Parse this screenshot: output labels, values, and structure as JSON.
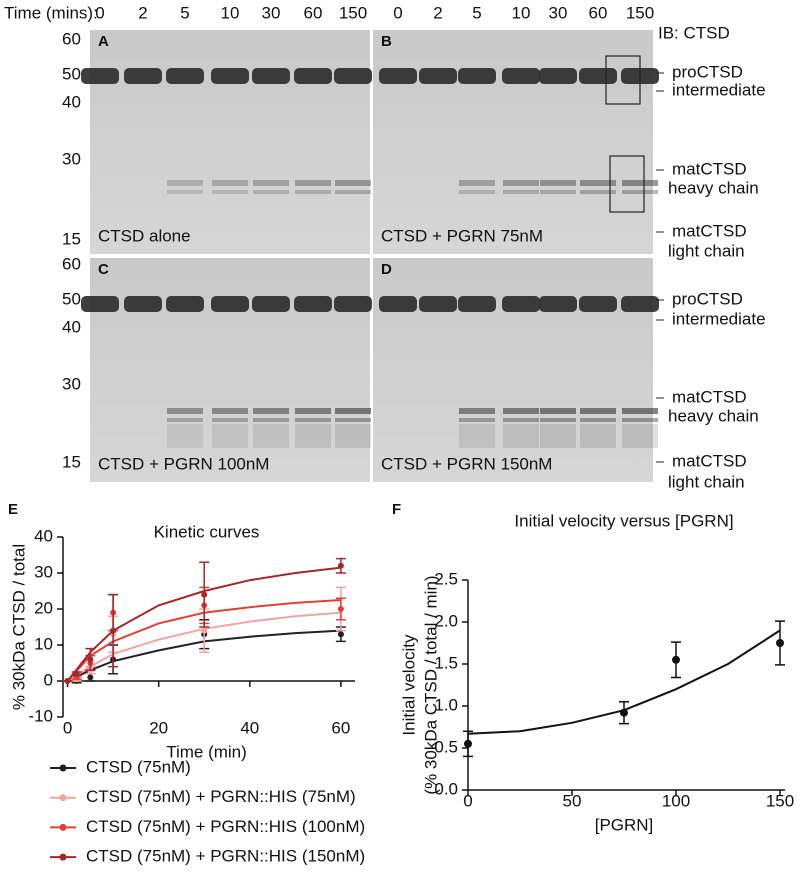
{
  "figure": {
    "time_label": "Time (mins):",
    "times": [
      "0",
      "2",
      "5",
      "10",
      "30",
      "60",
      "150"
    ],
    "ib_label": "IB: CTSD",
    "markers": [
      "60",
      "50",
      "40",
      "30",
      "15"
    ],
    "band_labels": [
      "proCTSD",
      "intermediate",
      "matCTSD",
      "heavy chain",
      "matCTSD",
      "light chain"
    ],
    "panels": [
      {
        "letter": "A",
        "caption": "CTSD alone"
      },
      {
        "letter": "B",
        "caption": "CTSD + PGRN 75nM"
      },
      {
        "letter": "C",
        "caption": "CTSD + PGRN 100nM"
      },
      {
        "letter": "D",
        "caption": "CTSD + PGRN 150nM"
      }
    ],
    "section_letters": [
      "E",
      "F"
    ]
  },
  "chart_data": [
    {
      "type": "line",
      "title": "Kinetic curves",
      "x_label": "Time (min)",
      "y_label": "% 30kDa CTSD / total",
      "x": [
        0,
        2,
        5,
        10,
        30,
        60
      ],
      "xlim": [
        -1,
        62
      ],
      "xticks": [
        0,
        20,
        40,
        60
      ],
      "ylim": [
        -10,
        40
      ],
      "yticks": [
        -10,
        0,
        10,
        20,
        30,
        40
      ],
      "legend": "below",
      "fit_x": [
        0,
        5,
        10,
        20,
        30,
        40,
        50,
        60
      ],
      "series": [
        {
          "name": "CTSD (75nM)",
          "color": "#222222",
          "values": [
            0,
            0,
            1,
            6,
            13,
            13
          ],
          "errors": [
            0,
            0.5,
            1,
            4,
            4,
            2
          ],
          "fit": [
            0,
            3,
            5.5,
            8.5,
            11,
            12.3,
            13.3,
            14
          ]
        },
        {
          "name": "CTSD (75nM) + PGRN::HIS (75nM)",
          "color": "#f2a3a3",
          "values": [
            0,
            0.5,
            3,
            13,
            14,
            20
          ],
          "errors": [
            0,
            0.5,
            1,
            5,
            6,
            6
          ],
          "fit": [
            0,
            4,
            7.5,
            11.5,
            14.5,
            16.5,
            18,
            19
          ]
        },
        {
          "name": "CTSD (75nM) + PGRN::HIS (100nM)",
          "color": "#e0403a",
          "values": [
            0,
            1,
            5,
            19,
            21,
            20
          ],
          "errors": [
            0,
            0.5,
            2,
            5,
            5,
            3
          ],
          "fit": [
            0,
            7,
            11,
            16,
            19,
            20.5,
            21.7,
            22.5
          ]
        },
        {
          "name": "CTSD (75nM) + PGRN::HIS (150nM)",
          "color": "#a3282b",
          "values": [
            0,
            2,
            6,
            14,
            24,
            32
          ],
          "errors": [
            0,
            0.5,
            3,
            10,
            9,
            2
          ],
          "fit": [
            0,
            8,
            14,
            21,
            25,
            28,
            30,
            31.5
          ]
        }
      ]
    },
    {
      "type": "scatter",
      "title": "Initial velocity versus [PGRN]",
      "x_label": "[PGRN]",
      "y_label": [
        "Initial velocity",
        "(% 30kDa CTSD / total / min)"
      ],
      "x": [
        0,
        75,
        100,
        150
      ],
      "xlim": [
        0,
        150
      ],
      "xticks": [
        0,
        50,
        100,
        150
      ],
      "ylim": [
        0,
        2.5
      ],
      "yticks": [
        {
          "value": 0,
          "label": "0.0"
        },
        0.5,
        {
          "value": 1,
          "label": "1.0"
        },
        1.5,
        {
          "value": 2,
          "label": "2.0"
        },
        2.5
      ],
      "fit_x": [
        0,
        25,
        50,
        75,
        100,
        125,
        150
      ],
      "series": [
        {
          "color": "#111111",
          "values": [
            0.55,
            0.92,
            1.55,
            1.75
          ],
          "errors": [
            0.15,
            0.13,
            0.21,
            0.26
          ],
          "fit": [
            0.67,
            0.7,
            0.8,
            0.95,
            1.2,
            1.5,
            1.9
          ]
        }
      ]
    }
  ]
}
